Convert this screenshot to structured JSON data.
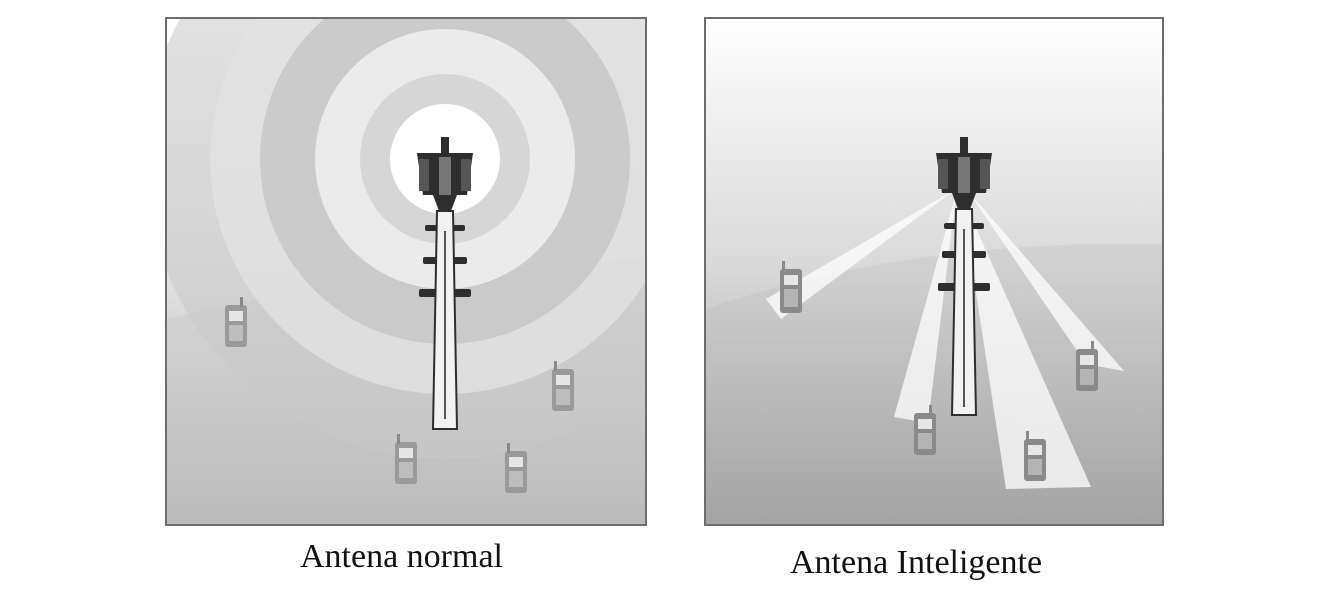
{
  "diagrams": [
    {
      "caption": "Antena normal"
    },
    {
      "caption": "Antena Inteligente"
    }
  ],
  "colors": {
    "border": "#6d6d6d",
    "tower": "#2e2e2e",
    "phone": "#8a8a8a",
    "background_light": "#ffffff",
    "background_dark": "#9a9a9a"
  },
  "icons": [
    "cell-tower-icon",
    "mobile-phone-icon"
  ]
}
